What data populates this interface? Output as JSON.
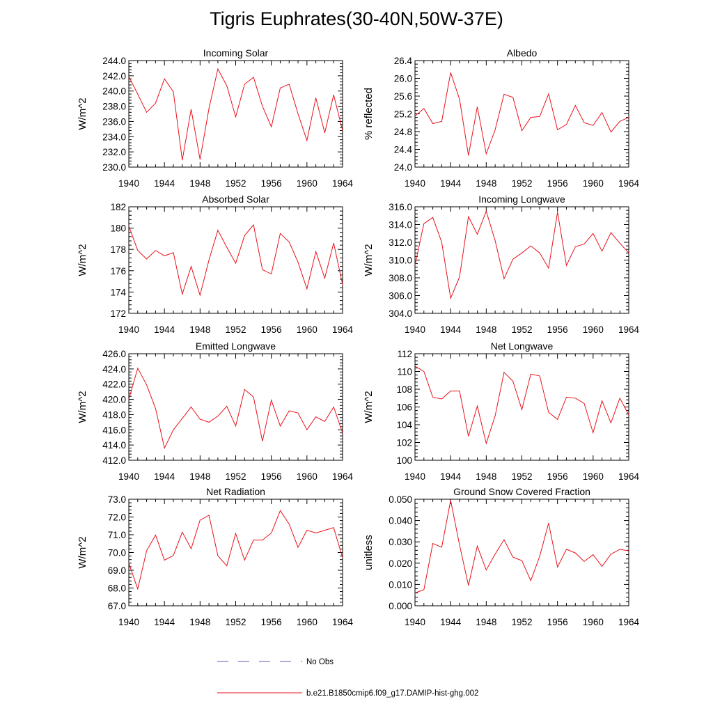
{
  "title": "Tigris Euphrates(30-40N,50W-37E)",
  "colors": {
    "model": "#e8111a",
    "obs": "#5b5fb5",
    "axis": "#000000"
  },
  "legend": {
    "items": [
      {
        "label": "No Obs",
        "style": "dashed",
        "color": "#5b5fb5"
      },
      {
        "label": "b.e21.B1850cmip6.f09_g17.DAMIP-hist-ghg.002",
        "style": "solid",
        "color": "#e8111a"
      }
    ]
  },
  "chart_data": [
    {
      "type": "line",
      "title": "Incoming Solar",
      "ylabel": "W/m^2",
      "xlim": [
        1940,
        1964
      ],
      "ylim": [
        230,
        244
      ],
      "decimals": 1,
      "xticks": [
        1940,
        1944,
        1948,
        1952,
        1956,
        1960,
        1964
      ],
      "yticks": [
        230,
        232,
        234,
        236,
        238,
        240,
        242,
        244
      ],
      "x": [
        1940,
        1941,
        1942,
        1943,
        1944,
        1945,
        1946,
        1947,
        1948,
        1949,
        1950,
        1951,
        1952,
        1953,
        1954,
        1955,
        1956,
        1957,
        1958,
        1959,
        1960,
        1961,
        1962,
        1963,
        1964
      ],
      "series": [
        {
          "name": "b.e21.B1850cmip6.f09_g17.DAMIP-hist-ghg.002",
          "values": [
            241.9,
            239.6,
            237.2,
            238.4,
            241.6,
            239.9,
            230.9,
            237.6,
            231.0,
            237.7,
            242.9,
            240.7,
            236.6,
            240.9,
            241.8,
            238.0,
            235.3,
            240.4,
            240.9,
            237.0,
            233.5,
            239.1,
            234.5,
            239.5,
            234.8
          ]
        }
      ]
    },
    {
      "type": "line",
      "title": "Albedo",
      "ylabel": "% reflected",
      "xlim": [
        1940,
        1964
      ],
      "ylim": [
        24.0,
        26.4
      ],
      "decimals": 1,
      "xticks": [
        1940,
        1944,
        1948,
        1952,
        1956,
        1960,
        1964
      ],
      "yticks": [
        24.0,
        24.4,
        24.8,
        25.2,
        25.6,
        26.0,
        26.4
      ],
      "x": [
        1940,
        1941,
        1942,
        1943,
        1944,
        1945,
        1946,
        1947,
        1948,
        1949,
        1950,
        1951,
        1952,
        1953,
        1954,
        1955,
        1956,
        1957,
        1958,
        1959,
        1960,
        1961,
        1962,
        1963,
        1964
      ],
      "series": [
        {
          "name": "b.e21.B1850cmip6.f09_g17.DAMIP-hist-ghg.002",
          "values": [
            25.15,
            25.32,
            24.98,
            25.03,
            26.13,
            25.53,
            24.26,
            25.36,
            24.3,
            24.84,
            25.64,
            25.57,
            24.82,
            25.12,
            25.14,
            25.65,
            24.84,
            24.96,
            25.39,
            25.0,
            24.94,
            25.23,
            24.79,
            25.03,
            25.12
          ]
        }
      ]
    },
    {
      "type": "line",
      "title": "Absorbed Solar",
      "ylabel": "W/m^2",
      "xlim": [
        1940,
        1964
      ],
      "ylim": [
        172,
        182
      ],
      "decimals": 0,
      "xticks": [
        1940,
        1944,
        1948,
        1952,
        1956,
        1960,
        1964
      ],
      "yticks": [
        172,
        174,
        176,
        178,
        180,
        182
      ],
      "x": [
        1940,
        1941,
        1942,
        1943,
        1944,
        1945,
        1946,
        1947,
        1948,
        1949,
        1950,
        1951,
        1952,
        1953,
        1954,
        1955,
        1956,
        1957,
        1958,
        1959,
        1960,
        1961,
        1962,
        1963,
        1964
      ],
      "series": [
        {
          "name": "b.e21.B1850cmip6.f09_g17.DAMIP-hist-ghg.002",
          "values": [
            180.2,
            177.9,
            177.1,
            177.9,
            177.4,
            177.7,
            173.8,
            176.4,
            173.7,
            177.0,
            179.8,
            178.2,
            176.7,
            179.3,
            180.3,
            176.1,
            175.7,
            179.5,
            178.7,
            176.8,
            174.3,
            177.8,
            175.3,
            178.6,
            174.7
          ]
        }
      ]
    },
    {
      "type": "line",
      "title": "Incoming Longwave",
      "ylabel": "W/m^2",
      "xlim": [
        1940,
        1964
      ],
      "ylim": [
        304,
        316
      ],
      "decimals": 1,
      "xticks": [
        1940,
        1944,
        1948,
        1952,
        1956,
        1960,
        1964
      ],
      "yticks": [
        304,
        306,
        308,
        310,
        312,
        314,
        316
      ],
      "x": [
        1940,
        1941,
        1942,
        1943,
        1944,
        1945,
        1946,
        1947,
        1948,
        1949,
        1950,
        1951,
        1952,
        1953,
        1954,
        1955,
        1956,
        1957,
        1958,
        1959,
        1960,
        1961,
        1962,
        1963,
        1964
      ],
      "series": [
        {
          "name": "b.e21.B1850cmip6.f09_g17.DAMIP-hist-ghg.002",
          "values": [
            309.4,
            314.1,
            314.8,
            312.0,
            305.7,
            308.1,
            314.9,
            312.9,
            315.5,
            312.2,
            307.9,
            310.1,
            310.8,
            311.6,
            310.8,
            309.1,
            315.4,
            309.4,
            311.5,
            311.8,
            313.0,
            311.0,
            313.1,
            311.9,
            310.8
          ]
        }
      ]
    },
    {
      "type": "line",
      "title": "Emitted Longwave",
      "ylabel": "W/m^2",
      "xlim": [
        1940,
        1964
      ],
      "ylim": [
        412,
        426
      ],
      "decimals": 1,
      "xticks": [
        1940,
        1944,
        1948,
        1952,
        1956,
        1960,
        1964
      ],
      "yticks": [
        412,
        414,
        416,
        418,
        420,
        422,
        424,
        426
      ],
      "x": [
        1940,
        1941,
        1942,
        1943,
        1944,
        1945,
        1946,
        1947,
        1948,
        1949,
        1950,
        1951,
        1952,
        1953,
        1954,
        1955,
        1956,
        1957,
        1958,
        1959,
        1960,
        1961,
        1962,
        1963,
        1964
      ],
      "series": [
        {
          "name": "b.e21.B1850cmip6.f09_g17.DAMIP-hist-ghg.002",
          "values": [
            420.0,
            424.1,
            421.9,
            418.8,
            413.6,
            416.0,
            417.5,
            419.0,
            417.4,
            417.0,
            417.8,
            419.1,
            416.5,
            421.3,
            420.3,
            414.5,
            419.9,
            416.5,
            418.5,
            418.2,
            416.0,
            417.7,
            417.1,
            419.0,
            415.6
          ]
        }
      ]
    },
    {
      "type": "line",
      "title": "Net Longwave",
      "ylabel": "W/m^2",
      "xlim": [
        1940,
        1964
      ],
      "ylim": [
        100,
        112
      ],
      "decimals": 0,
      "xticks": [
        1940,
        1944,
        1948,
        1952,
        1956,
        1960,
        1964
      ],
      "yticks": [
        100,
        102,
        104,
        106,
        108,
        110,
        112
      ],
      "x": [
        1940,
        1941,
        1942,
        1943,
        1944,
        1945,
        1946,
        1947,
        1948,
        1949,
        1950,
        1951,
        1952,
        1953,
        1954,
        1955,
        1956,
        1957,
        1958,
        1959,
        1960,
        1961,
        1962,
        1963,
        1964
      ],
      "series": [
        {
          "name": "b.e21.B1850cmip6.f09_g17.DAMIP-hist-ghg.002",
          "values": [
            110.6,
            110.0,
            107.1,
            106.9,
            107.8,
            107.8,
            102.7,
            106.1,
            101.9,
            105.0,
            109.9,
            108.9,
            105.7,
            109.7,
            109.5,
            105.4,
            104.6,
            107.1,
            107.0,
            106.4,
            103.1,
            106.7,
            104.2,
            107.0,
            105.1
          ]
        }
      ]
    },
    {
      "type": "line",
      "title": "Net Radiation",
      "ylabel": "W/m^2",
      "xlim": [
        1940,
        1964
      ],
      "ylim": [
        67,
        73
      ],
      "decimals": 1,
      "xticks": [
        1940,
        1944,
        1948,
        1952,
        1956,
        1960,
        1964
      ],
      "yticks": [
        67,
        68,
        69,
        70,
        71,
        72,
        73
      ],
      "x": [
        1940,
        1941,
        1942,
        1943,
        1944,
        1945,
        1946,
        1947,
        1948,
        1949,
        1950,
        1951,
        1952,
        1953,
        1954,
        1955,
        1956,
        1957,
        1958,
        1959,
        1960,
        1961,
        1962,
        1963,
        1964
      ],
      "series": [
        {
          "name": "b.e21.B1850cmip6.f09_g17.DAMIP-hist-ghg.002",
          "values": [
            69.4,
            67.95,
            70.1,
            70.98,
            69.57,
            69.83,
            71.15,
            70.21,
            71.82,
            72.1,
            69.82,
            69.25,
            71.07,
            69.57,
            70.7,
            70.7,
            71.1,
            72.36,
            71.6,
            70.29,
            71.26,
            71.1,
            71.25,
            71.4,
            69.7
          ]
        }
      ]
    },
    {
      "type": "line",
      "title": "Ground Snow Covered Fraction",
      "ylabel": "unitless",
      "xlim": [
        1940,
        1964
      ],
      "ylim": [
        0.0,
        0.05
      ],
      "decimals": 3,
      "xticks": [
        1940,
        1944,
        1948,
        1952,
        1956,
        1960,
        1964
      ],
      "yticks": [
        0.0,
        0.01,
        0.02,
        0.03,
        0.04,
        0.05
      ],
      "x": [
        1940,
        1941,
        1942,
        1943,
        1944,
        1945,
        1946,
        1947,
        1948,
        1949,
        1950,
        1951,
        1952,
        1953,
        1954,
        1955,
        1956,
        1957,
        1958,
        1959,
        1960,
        1961,
        1962,
        1963,
        1964
      ],
      "series": [
        {
          "name": "b.e21.B1850cmip6.f09_g17.DAMIP-hist-ghg.002",
          "values": [
            0.006,
            0.0075,
            0.0292,
            0.0275,
            0.0495,
            0.0285,
            0.0095,
            0.028,
            0.0168,
            0.0242,
            0.031,
            0.0228,
            0.0212,
            0.0118,
            0.0232,
            0.0388,
            0.0182,
            0.0265,
            0.0248,
            0.0208,
            0.024,
            0.0185,
            0.0242,
            0.0265,
            0.0258
          ]
        }
      ]
    }
  ]
}
